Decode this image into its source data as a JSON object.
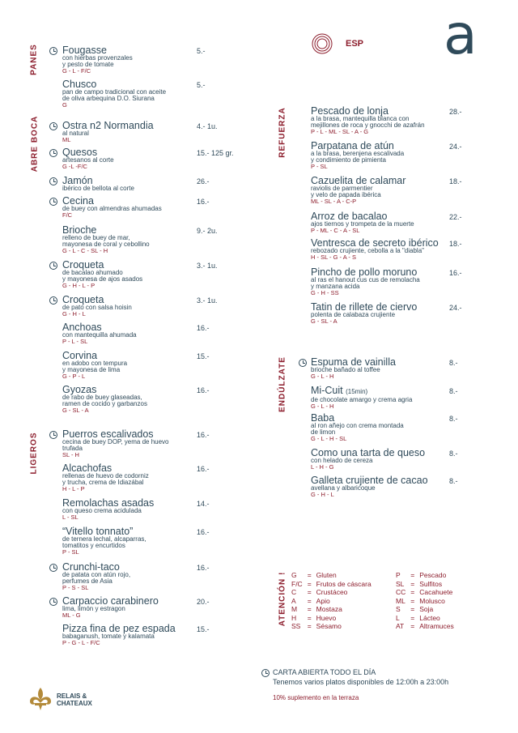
{
  "header": {
    "language": "ESP",
    "brand_letter": "a"
  },
  "logo": {
    "line1": "RELAIS &",
    "line2": "CHATEAUX"
  },
  "sections": {
    "panes": "PANES",
    "abre_boca": "ABRE BOCA",
    "ligeros": "LIGEROS",
    "refuerza": "REFUERZA",
    "endulzate": "ENDÚLZATE",
    "atencion": "ATENCIÓN !"
  },
  "left_items": [
    {
      "name": "Fougasse",
      "desc": [
        "con hierbas provenzales",
        "y pesto de tomate"
      ],
      "allergens": "G - L - F/C",
      "price": "5.-",
      "clock": true
    },
    {
      "name": "Chusco",
      "desc": [
        "pan de campo tradicional con aceite",
        "de oliva arbequina D.O. Siurana"
      ],
      "allergens": "G",
      "price": "5.-",
      "clock": false
    },
    {
      "name": "Ostra n2 Normandia",
      "desc": [
        "al natural"
      ],
      "allergens": "ML",
      "price": "4.- 1u.",
      "clock": true
    },
    {
      "name": "Quesos",
      "desc": [
        "artesanos al corte"
      ],
      "allergens": "G -L -F/C",
      "price": "15.- 125 gr.",
      "clock": true
    },
    {
      "name": "Jamón",
      "desc": [
        "ibérico de bellota al corte"
      ],
      "allergens": "",
      "price": "26.-",
      "clock": true
    },
    {
      "name": "Cecina",
      "desc": [
        "de buey con almendras ahumadas"
      ],
      "allergens": "F/C",
      "price": "16.-",
      "clock": true
    },
    {
      "name": "Brioche",
      "desc": [
        "relleno de buey de mar,",
        "mayonesa de coral y cebollino"
      ],
      "allergens": "G - L - C - SL - H",
      "price": "9.- 2u.",
      "clock": false
    },
    {
      "name": "Croqueta",
      "desc": [
        "de bacalao ahumado",
        "y mayonesa de ajos asados"
      ],
      "allergens": "G - H - L - P",
      "price": "3.- 1u.",
      "clock": true
    },
    {
      "name": "Croqueta",
      "desc": [
        "de pato con salsa hoisin"
      ],
      "allergens": "G - H - L",
      "price": "3.- 1u.",
      "clock": true
    },
    {
      "name": "Anchoas",
      "desc": [
        "con mantequilla ahumada"
      ],
      "allergens": "P - L - SL",
      "price": "16.-",
      "clock": false
    },
    {
      "name": "Corvina",
      "desc": [
        "en adobo con tempura",
        "y mayonesa de lima"
      ],
      "allergens": "G - P - L",
      "price": "15.-",
      "clock": false
    },
    {
      "name": "Gyozas",
      "desc": [
        "de rabo de buey glaseadas,",
        "ramen de cocido y garbanzos"
      ],
      "allergens": "G - SL - A",
      "price": "16.-",
      "clock": false
    },
    {
      "name": "Puerros escalivados",
      "desc": [
        "cecina de buey DOP, yema de huevo",
        "trufada"
      ],
      "allergens": "SL - H",
      "price": "16.-",
      "clock": true
    },
    {
      "name": "Alcachofas",
      "desc": [
        " rellenas de huevo de codorniz",
        "y trucha, crema de Idiazábal"
      ],
      "allergens": "H - L - P",
      "price": "16.-",
      "clock": false
    },
    {
      "name": "Remolachas asadas",
      "desc": [
        "con queso crema acidulada"
      ],
      "allergens": "L - SL",
      "price": "14.-",
      "clock": false
    },
    {
      "name": "“Vitello tonnato”",
      "desc": [
        "de ternera lechal, alcaparras,",
        "tomatitos y encurtidos"
      ],
      "allergens": "P - SL",
      "price": "16.-",
      "clock": false
    },
    {
      "name": "Crunchi-taco",
      "desc": [
        "de patata con atún rojo,",
        "perfumes de Asia"
      ],
      "allergens": "P - S - SL",
      "price": "16.-",
      "clock": true
    },
    {
      "name": "Carpaccio carabinero",
      "desc": [
        "lima, limón y estragon"
      ],
      "allergens": "ML - G",
      "price": "20.-",
      "clock": true
    },
    {
      "name": "Pizza fina de pez espada",
      "desc": [
        "babaganush, tomate y kalamata"
      ],
      "allergens": "P - G - L - F/C",
      "price": "15.-",
      "clock": false
    }
  ],
  "right_items": [
    {
      "name": "Pescado de lonja",
      "desc": [
        "a la brasa, mantequilla blanca con",
        "mejillones de roca y gnocchi de azafrán"
      ],
      "allergens": "P - L - ML - SL - A - G",
      "price": "28.-"
    },
    {
      "name": "Parpatana de atún",
      "desc": [
        "a la brasa, berenjena escalivada",
        "y condimiento de pimienta"
      ],
      "allergens": "P - SL",
      "price": "24.-"
    },
    {
      "name": "Cazuelita de calamar",
      "desc": [
        "raviolis de parmentier",
        "y velo de papada ibérica"
      ],
      "allergens": "ML - SL - A - C-P",
      "price": "18.-"
    },
    {
      "name": "Arroz de bacalao",
      "desc": [
        "ajos tiernos y trompeta de la muerte"
      ],
      "allergens": "P - ML - C - A - SL",
      "price": "22.-"
    },
    {
      "name": "Ventresca de secreto ibérico",
      "desc": [
        "rebozado crujiente, cebolla a la \"diabla\""
      ],
      "allergens": "H - SL - G - A - S",
      "price": "18.-"
    },
    {
      "name": "Pincho de pollo moruno",
      "desc": [
        "al ras el hanout cus cus de remolacha",
        "y manzana acida"
      ],
      "allergens": "G - H - SS",
      "price": "16.-"
    },
    {
      "name": "Tatin de rillete de ciervo",
      "desc": [
        "polenta de calabaza crujiente"
      ],
      "allergens": "G - SL - A",
      "price": "24.-"
    }
  ],
  "desserts": [
    {
      "name": "Espuma de vainilla",
      "note": "",
      "desc": [
        "brioche bañado al toffee"
      ],
      "allergens": "G - L - H",
      "price": "8.-"
    },
    {
      "name": "Mi-Cuit",
      "note": "(15min)",
      "desc": [
        "de chocolate amargo y crema agria"
      ],
      "allergens": "G - L - H",
      "price": "8.-"
    },
    {
      "name": "Baba",
      "note": "",
      "desc": [
        "al ron añejo con crema montada",
        "de limon"
      ],
      "allergens": "G - L - H - SL",
      "price": "8.-"
    },
    {
      "name": "Como una tarta de queso",
      "note": "",
      "desc": [
        "con helado de cereza"
      ],
      "allergens": "L - H - G",
      "price": "8.-"
    },
    {
      "name": "Galleta crujiente de cacao",
      "note": "",
      "desc": [
        "avellana y albaricoque"
      ],
      "allergens": "G - H - L",
      "price": "8.-"
    }
  ],
  "legend_left": [
    [
      "G",
      "=",
      "Gluten"
    ],
    [
      "F/C",
      "=",
      "Frutos de cáscara"
    ],
    [
      "C",
      "=",
      "Crustáceo"
    ],
    [
      "A",
      "=",
      "Apio"
    ],
    [
      "M",
      "=",
      "Mostaza"
    ],
    [
      "H",
      "=",
      "Huevo"
    ],
    [
      "SS",
      "=",
      "Sésamo"
    ]
  ],
  "legend_right": [
    [
      "P",
      "=",
      "Pescado"
    ],
    [
      "SL",
      "=",
      "Sulfitos"
    ],
    [
      "CC",
      "=",
      "Cacahuete"
    ],
    [
      "ML",
      "=",
      "Molusco"
    ],
    [
      "S",
      "=",
      "Soja"
    ],
    [
      "L",
      "=",
      "Lácteo"
    ],
    [
      "AT",
      "=",
      "Altramuces"
    ]
  ],
  "footer": {
    "carta_title": "CARTA ABIERTA TODO EL DÍA",
    "carta_text": "Tenemos varios platos disponibles de 12:00h a 23:00h",
    "terraza": "10% suplemento en la terraza"
  },
  "colors": {
    "accent": "#8c1d2c",
    "text": "#2f4a5a"
  }
}
